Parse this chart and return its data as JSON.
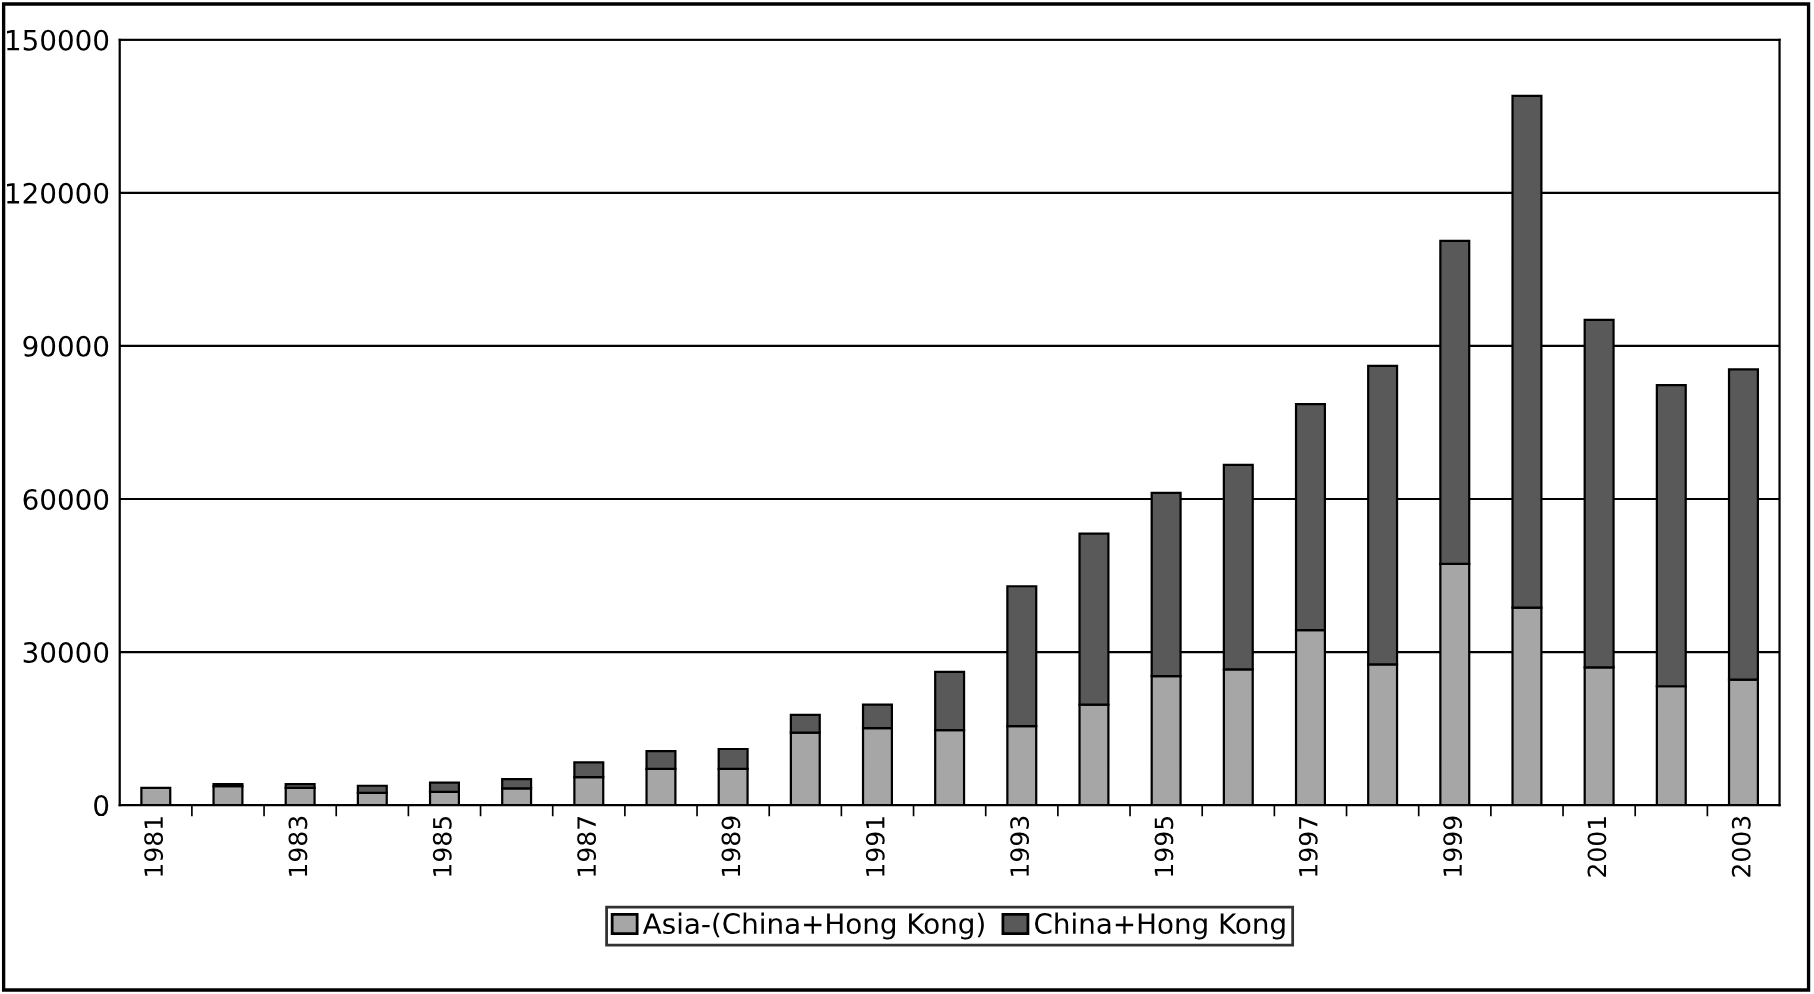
{
  "chart_data": {
    "type": "bar",
    "stacked": true,
    "categories": [
      "1981",
      null,
      "1983",
      null,
      "1985",
      null,
      "1987",
      null,
      "1989",
      null,
      "1991",
      null,
      "1993",
      null,
      "1995",
      null,
      "1997",
      null,
      "1999",
      null,
      "2001",
      null,
      "2003"
    ],
    "series": [
      {
        "name": "Asia-(China+Hong Kong)",
        "color": "#a6a6a6",
        "values": [
          3400,
          3700,
          3400,
          2400,
          2600,
          3300,
          5500,
          7100,
          7100,
          14200,
          15100,
          14700,
          15500,
          19700,
          25300,
          26600,
          34300,
          27600,
          47300,
          38700,
          27000,
          23300,
          24600
        ]
      },
      {
        "name": "China+Hong Kong",
        "color": "#595959",
        "values": [
          null,
          400,
          700,
          1400,
          1800,
          1800,
          2900,
          3500,
          3900,
          3500,
          4600,
          11400,
          27400,
          33500,
          35900,
          40100,
          44300,
          58500,
          63300,
          100300,
          68100,
          59000,
          60800
        ]
      }
    ],
    "ylim": [
      0,
      150000
    ],
    "yticks": [
      0,
      30000,
      60000,
      90000,
      120000,
      150000
    ],
    "grid": "y",
    "legend": "bottom"
  }
}
